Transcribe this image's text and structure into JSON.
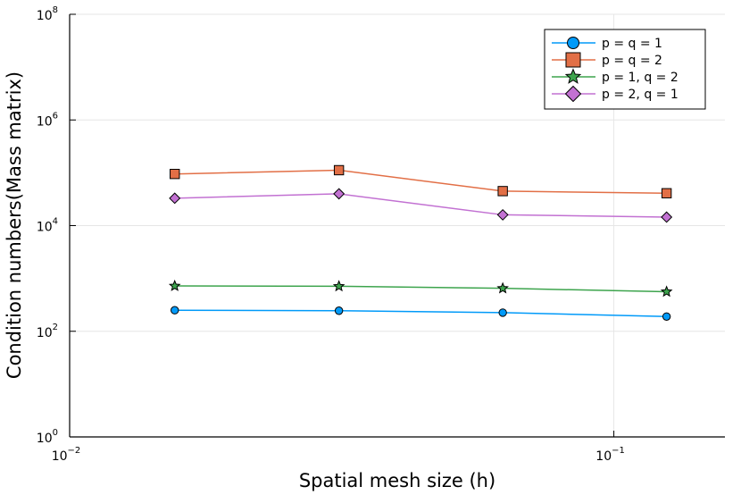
{
  "chart_data": {
    "type": "line",
    "title": "",
    "xlabel": "Spatial mesh size (h)",
    "ylabel": "Condition numbers(Mass matrix)",
    "xscale": "log",
    "yscale": "log",
    "xlim": [
      0.01,
      0.16
    ],
    "ylim": [
      1,
      100000000
    ],
    "grid": true,
    "legend_position": "top-right",
    "x_ticks": [
      {
        "value": 0.01,
        "base": "10",
        "exp": "−2"
      },
      {
        "value": 0.1,
        "base": "10",
        "exp": "−1"
      }
    ],
    "y_ticks": [
      {
        "value": 1,
        "base": "10",
        "exp": "0"
      },
      {
        "value": 100,
        "base": "10",
        "exp": "2"
      },
      {
        "value": 10000,
        "base": "10",
        "exp": "4"
      },
      {
        "value": 1000000,
        "base": "10",
        "exp": "6"
      },
      {
        "value": 100000000,
        "base": "10",
        "exp": "8"
      }
    ],
    "x": [
      0.0156,
      0.03125,
      0.0625,
      0.125
    ],
    "series": [
      {
        "name": "p = q = 1",
        "color": "#009af9",
        "marker": "circle",
        "values": [
          250,
          245,
          225,
          190
        ]
      },
      {
        "name": "p = q = 2",
        "color": "#e26f46",
        "marker": "square",
        "values": [
          95000,
          112000,
          45000,
          41000
        ]
      },
      {
        "name": "p = 1, q = 2",
        "color": "#3da44d",
        "marker": "star",
        "values": [
          720,
          710,
          650,
          560
        ]
      },
      {
        "name": "p = 2, q = 1",
        "color": "#c271d2",
        "marker": "diamond",
        "values": [
          33000,
          40000,
          16000,
          14500
        ]
      }
    ]
  }
}
